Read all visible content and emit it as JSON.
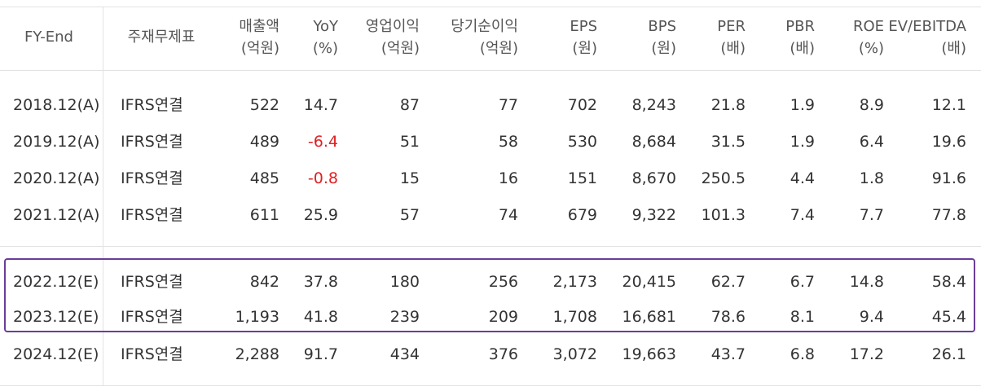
{
  "headers": [
    {
      "line1": "FY-End",
      "line2": ""
    },
    {
      "line1": "주재무제표",
      "line2": ""
    },
    {
      "line1": "매출액",
      "line2": "(억원)"
    },
    {
      "line1": "YoY",
      "line2": "(%)"
    },
    {
      "line1": "영업이익",
      "line2": "(억원)"
    },
    {
      "line1": "당기순이익",
      "line2": "(억원)"
    },
    {
      "line1": "EPS",
      "line2": "(원)"
    },
    {
      "line1": "BPS",
      "line2": "(원)"
    },
    {
      "line1": "PER",
      "line2": "(배)"
    },
    {
      "line1": "PBR",
      "line2": "(배)"
    },
    {
      "line1": "ROE",
      "line2": "(%)"
    },
    {
      "line1": "EV/EBITDA",
      "line2": "(배)"
    }
  ],
  "rows": [
    [
      "2018.12(A)",
      "IFRS연결",
      "522",
      "14.7",
      "87",
      "77",
      "702",
      "8,243",
      "21.8",
      "1.9",
      "8.9",
      "12.1"
    ],
    [
      "2019.12(A)",
      "IFRS연결",
      "489",
      "-6.4",
      "51",
      "58",
      "530",
      "8,684",
      "31.5",
      "1.9",
      "6.4",
      "19.6"
    ],
    [
      "2020.12(A)",
      "IFRS연결",
      "485",
      "-0.8",
      "15",
      "16",
      "151",
      "8,670",
      "250.5",
      "4.4",
      "1.8",
      "91.6"
    ],
    [
      "2021.12(A)",
      "IFRS연결",
      "611",
      "25.9",
      "57",
      "74",
      "679",
      "9,322",
      "101.3",
      "7.4",
      "7.7",
      "77.8"
    ],
    [
      "2022.12(E)",
      "IFRS연결",
      "842",
      "37.8",
      "180",
      "256",
      "2,173",
      "20,415",
      "62.7",
      "6.7",
      "14.8",
      "58.4"
    ],
    [
      "2023.12(E)",
      "IFRS연결",
      "1,193",
      "41.8",
      "239",
      "209",
      "1,708",
      "16,681",
      "78.6",
      "8.1",
      "9.4",
      "45.4"
    ],
    [
      "2024.12(E)",
      "IFRS연결",
      "2,288",
      "91.7",
      "434",
      "376",
      "3,072",
      "19,663",
      "43.7",
      "6.8",
      "17.2",
      "26.1"
    ]
  ],
  "highlighted_rows": [
    4,
    5
  ],
  "colors": {
    "negative": "#e02020",
    "highlight_border": "#6a3d9a"
  }
}
